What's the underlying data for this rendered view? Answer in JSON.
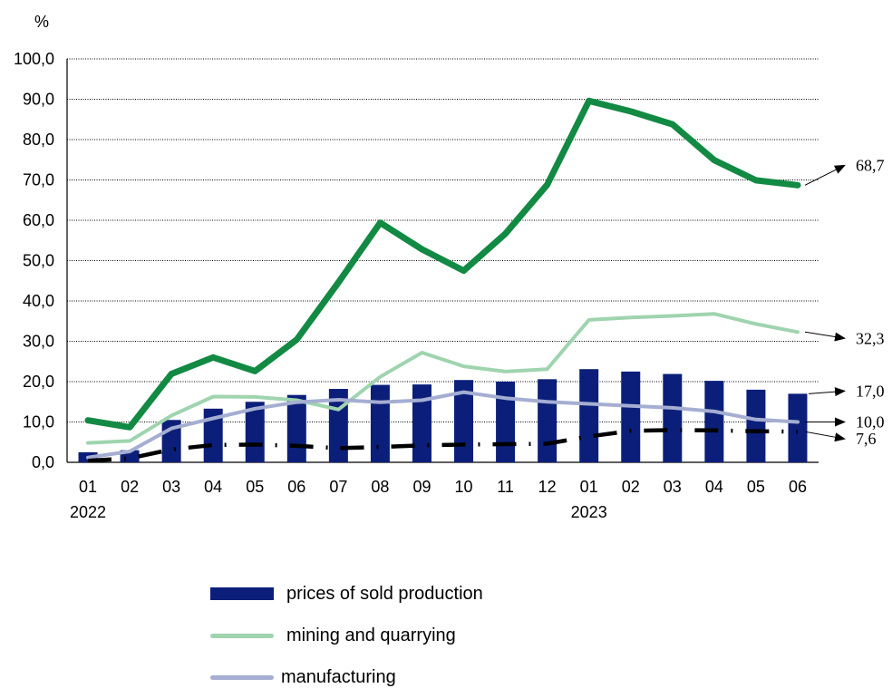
{
  "chart_data": {
    "type": "bar",
    "ylabel": "%",
    "ylim": [
      0,
      100
    ],
    "y_ticks": [
      "0,0",
      "10,0",
      "20,0",
      "30,0",
      "40,0",
      "50,0",
      "60,0",
      "70,0",
      "80,0",
      "90,0",
      "100,0"
    ],
    "grid": "horizontal dotted",
    "categories": [
      "01",
      "02",
      "03",
      "04",
      "05",
      "06",
      "07",
      "08",
      "09",
      "10",
      "11",
      "12",
      "01",
      "02",
      "03",
      "04",
      "05",
      "06"
    ],
    "year_labels": [
      {
        "index": 0,
        "label": "2022"
      },
      {
        "index": 12,
        "label": "2023"
      }
    ],
    "series": [
      {
        "name": "prices of sold production",
        "type": "bar",
        "color": "#0b1f7a",
        "values": [
          2.5,
          3.0,
          10.5,
          13.3,
          15.0,
          16.7,
          18.2,
          19.2,
          19.3,
          20.4,
          20.0,
          20.6,
          23.1,
          22.5,
          21.9,
          20.2,
          18.0,
          17.0
        ]
      },
      {
        "name": "mining and quarrying",
        "type": "line",
        "color": "#9fd4ae",
        "values": [
          4.8,
          5.3,
          11.6,
          16.3,
          16.2,
          15.4,
          13.1,
          21.2,
          27.2,
          23.8,
          22.5,
          23.1,
          35.3,
          35.9,
          36.3,
          36.8,
          34.3,
          32.3
        ]
      },
      {
        "name": "manufacturing",
        "type": "line",
        "color": "#a5aed2",
        "values": [
          1.2,
          2.7,
          8.4,
          10.9,
          13.3,
          14.9,
          15.5,
          14.9,
          15.4,
          17.4,
          15.9,
          15.0,
          14.5,
          14.0,
          13.5,
          12.6,
          10.6,
          10.0
        ]
      },
      {
        "type": "line",
        "color": "#128a43",
        "values": [
          10.4,
          8.7,
          21.9,
          26.0,
          22.6,
          30.4,
          44.6,
          59.4,
          52.8,
          47.5,
          56.7,
          68.8,
          89.6,
          87.0,
          83.8,
          74.9,
          69.9,
          68.7
        ]
      },
      {
        "type": "line",
        "style": "dash-dot",
        "color": "#000000",
        "values": [
          0.4,
          1.0,
          3.2,
          4.3,
          4.4,
          4.1,
          3.5,
          3.8,
          4.2,
          4.4,
          4.5,
          4.6,
          6.4,
          7.8,
          8.0,
          7.9,
          7.7,
          7.6
        ]
      }
    ],
    "end_labels": [
      {
        "series_index": 3,
        "label": "68,7"
      },
      {
        "series_index": 1,
        "label": "32,3"
      },
      {
        "series_index": 0,
        "label": "17,0"
      },
      {
        "series_index": 2,
        "label": "10,0"
      },
      {
        "series_index": 4,
        "label": "7,6"
      }
    ]
  },
  "legend": {
    "items": [
      {
        "label": "prices of sold production",
        "color": "#0b1f7a",
        "kind": "bar"
      },
      {
        "label": "mining and quarrying",
        "color": "#9fd4ae",
        "kind": "line"
      },
      {
        "label": "manufacturing",
        "color": "#a5aed2",
        "kind": "line"
      }
    ]
  }
}
